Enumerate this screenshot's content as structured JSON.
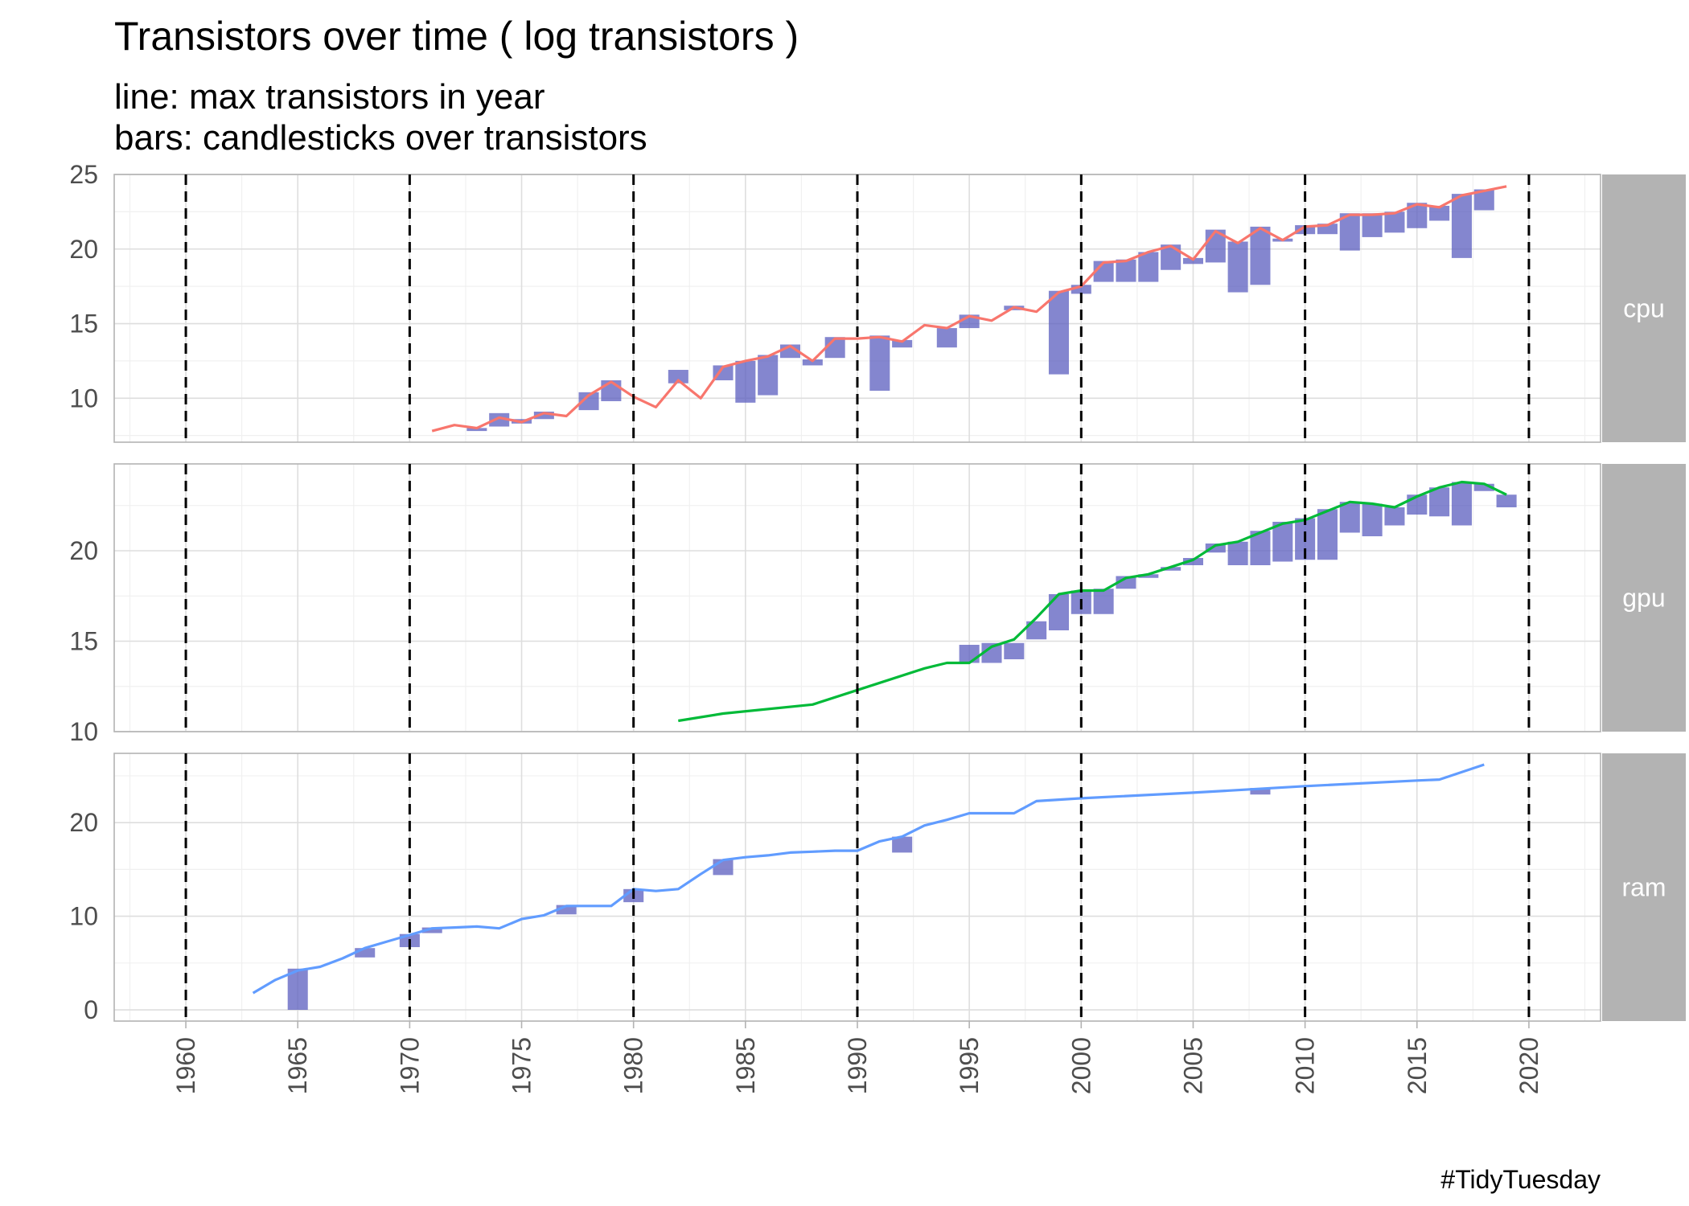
{
  "chart_data": {
    "type": "line+candlestick",
    "title": "Transistors over time ( log transistors )",
    "subtitle_lines": [
      "line: max transistors in year",
      "bars: candlesticks over transistors"
    ],
    "caption": "#TidyTuesday",
    "x_label": "",
    "y_label": "",
    "xlim": [
      1956.8,
      2023.2
    ],
    "x_ticks": [
      1960,
      1965,
      1970,
      1975,
      1980,
      1985,
      1990,
      1995,
      2000,
      2005,
      2010,
      2015,
      2020
    ],
    "decade_reference_lines": [
      1960,
      1970,
      1980,
      1990,
      2000,
      2010,
      2020
    ],
    "bar_color": "#5B5EBF",
    "grid": true,
    "panels": [
      {
        "facet": "cpu",
        "color": "#F8766D",
        "ylim": [
          7.05,
          25.0
        ],
        "y_ticks": [
          10,
          15,
          20,
          25
        ],
        "line": [
          [
            1971,
            7.8
          ],
          [
            1972,
            8.2
          ],
          [
            1973,
            8.0
          ],
          [
            1974,
            8.7
          ],
          [
            1975,
            8.4
          ],
          [
            1976,
            9.0
          ],
          [
            1977,
            8.8
          ],
          [
            1978,
            10.2
          ],
          [
            1979,
            11.1
          ],
          [
            1980,
            10.1
          ],
          [
            1981,
            9.4
          ],
          [
            1982,
            11.2
          ],
          [
            1983,
            10.0
          ],
          [
            1984,
            12.1
          ],
          [
            1985,
            12.5
          ],
          [
            1986,
            12.8
          ],
          [
            1987,
            13.5
          ],
          [
            1988,
            12.5
          ],
          [
            1989,
            14.0
          ],
          [
            1990,
            14.0
          ],
          [
            1991,
            14.1
          ],
          [
            1992,
            13.8
          ],
          [
            1993,
            14.9
          ],
          [
            1994,
            14.7
          ],
          [
            1995,
            15.5
          ],
          [
            1996,
            15.2
          ],
          [
            1997,
            16.1
          ],
          [
            1998,
            15.8
          ],
          [
            1999,
            17.1
          ],
          [
            2000,
            17.5
          ],
          [
            2001,
            19.1
          ],
          [
            2002,
            19.2
          ],
          [
            2003,
            19.8
          ],
          [
            2004,
            20.2
          ],
          [
            2005,
            19.3
          ],
          [
            2006,
            21.2
          ],
          [
            2007,
            20.4
          ],
          [
            2008,
            21.4
          ],
          [
            2009,
            20.6
          ],
          [
            2010,
            21.5
          ],
          [
            2011,
            21.6
          ],
          [
            2012,
            22.3
          ],
          [
            2013,
            22.3
          ],
          [
            2014,
            22.4
          ],
          [
            2015,
            23.0
          ],
          [
            2016,
            22.8
          ],
          [
            2017,
            23.6
          ],
          [
            2018,
            23.9
          ],
          [
            2019,
            24.2
          ]
        ],
        "bars": [
          [
            1973,
            7.8,
            8.0
          ],
          [
            1974,
            8.1,
            9.0
          ],
          [
            1975,
            8.3,
            8.6
          ],
          [
            1976,
            8.6,
            9.1
          ],
          [
            1978,
            9.2,
            10.4
          ],
          [
            1979,
            9.8,
            11.2
          ],
          [
            1982,
            11.0,
            11.9
          ],
          [
            1984,
            11.2,
            12.2
          ],
          [
            1985,
            9.7,
            12.5
          ],
          [
            1986,
            10.2,
            12.9
          ],
          [
            1987,
            12.7,
            13.6
          ],
          [
            1988,
            12.2,
            12.6
          ],
          [
            1989,
            12.7,
            14.1
          ],
          [
            1991,
            10.5,
            14.2
          ],
          [
            1992,
            13.4,
            13.9
          ],
          [
            1994,
            13.4,
            14.7
          ],
          [
            1995,
            14.7,
            15.6
          ],
          [
            1997,
            15.9,
            16.2
          ],
          [
            1999,
            11.6,
            17.2
          ],
          [
            2000,
            17.0,
            17.6
          ],
          [
            2001,
            17.8,
            19.2
          ],
          [
            2002,
            17.8,
            19.3
          ],
          [
            2003,
            17.8,
            19.8
          ],
          [
            2004,
            18.6,
            20.3
          ],
          [
            2005,
            19.0,
            19.4
          ],
          [
            2006,
            19.1,
            21.3
          ],
          [
            2007,
            17.1,
            20.5
          ],
          [
            2008,
            17.6,
            21.5
          ],
          [
            2009,
            20.5,
            20.7
          ],
          [
            2010,
            21.0,
            21.6
          ],
          [
            2011,
            21.0,
            21.7
          ],
          [
            2012,
            19.9,
            22.4
          ],
          [
            2013,
            20.8,
            22.4
          ],
          [
            2014,
            21.1,
            22.5
          ],
          [
            2015,
            21.4,
            23.1
          ],
          [
            2016,
            21.9,
            22.9
          ],
          [
            2017,
            19.4,
            23.7
          ],
          [
            2018,
            22.6,
            24.0
          ]
        ]
      },
      {
        "facet": "gpu",
        "color": "#00BA38",
        "ylim": [
          10.0,
          24.8
        ],
        "y_ticks": [
          10,
          15,
          20
        ],
        "line": [
          [
            1982,
            10.6
          ],
          [
            1984,
            11.0
          ],
          [
            1988,
            11.5
          ],
          [
            1990,
            12.3
          ],
          [
            1993,
            13.5
          ],
          [
            1994,
            13.8
          ],
          [
            1995,
            13.8
          ],
          [
            1996,
            14.7
          ],
          [
            1997,
            15.1
          ],
          [
            1998,
            16.3
          ],
          [
            1999,
            17.6
          ],
          [
            2000,
            17.8
          ],
          [
            2001,
            17.8
          ],
          [
            2002,
            18.5
          ],
          [
            2003,
            18.7
          ],
          [
            2004,
            19.1
          ],
          [
            2005,
            19.5
          ],
          [
            2006,
            20.3
          ],
          [
            2007,
            20.5
          ],
          [
            2008,
            21.0
          ],
          [
            2009,
            21.5
          ],
          [
            2010,
            21.7
          ],
          [
            2011,
            22.2
          ],
          [
            2012,
            22.7
          ],
          [
            2013,
            22.6
          ],
          [
            2014,
            22.4
          ],
          [
            2015,
            23.0
          ],
          [
            2016,
            23.5
          ],
          [
            2017,
            23.8
          ],
          [
            2018,
            23.7
          ],
          [
            2019,
            23.1
          ]
        ],
        "bars": [
          [
            1995,
            13.8,
            14.8
          ],
          [
            1996,
            13.8,
            14.9
          ],
          [
            1997,
            14.0,
            14.9
          ],
          [
            1998,
            15.1,
            16.1
          ],
          [
            1999,
            15.6,
            17.6
          ],
          [
            2000,
            16.5,
            17.8
          ],
          [
            2001,
            16.5,
            17.9
          ],
          [
            2002,
            17.9,
            18.6
          ],
          [
            2003,
            18.5,
            18.7
          ],
          [
            2004,
            18.9,
            19.1
          ],
          [
            2005,
            19.2,
            19.6
          ],
          [
            2006,
            19.9,
            20.4
          ],
          [
            2007,
            19.2,
            20.5
          ],
          [
            2008,
            19.2,
            21.1
          ],
          [
            2009,
            19.4,
            21.6
          ],
          [
            2010,
            19.5,
            21.8
          ],
          [
            2011,
            19.5,
            22.3
          ],
          [
            2012,
            21.0,
            22.7
          ],
          [
            2013,
            20.8,
            22.6
          ],
          [
            2014,
            21.4,
            22.4
          ],
          [
            2015,
            22.0,
            23.1
          ],
          [
            2016,
            21.9,
            23.5
          ],
          [
            2017,
            21.4,
            23.8
          ],
          [
            2018,
            23.3,
            23.7
          ],
          [
            2019,
            22.4,
            23.1
          ]
        ]
      },
      {
        "facet": "ram",
        "color": "#619CFF",
        "ylim": [
          -1.2,
          27.4
        ],
        "y_ticks": [
          0,
          10,
          20
        ],
        "line": [
          [
            1963,
            1.8
          ],
          [
            1964,
            3.2
          ],
          [
            1965,
            4.2
          ],
          [
            1966,
            4.6
          ],
          [
            1967,
            5.5
          ],
          [
            1968,
            6.6
          ],
          [
            1969,
            7.3
          ],
          [
            1970,
            8.0
          ],
          [
            1971,
            8.7
          ],
          [
            1972,
            8.8
          ],
          [
            1973,
            8.9
          ],
          [
            1974,
            8.7
          ],
          [
            1975,
            9.7
          ],
          [
            1976,
            10.1
          ],
          [
            1977,
            11.1
          ],
          [
            1978,
            11.1
          ],
          [
            1979,
            11.1
          ],
          [
            1980,
            12.9
          ],
          [
            1981,
            12.7
          ],
          [
            1982,
            12.9
          ],
          [
            1983,
            14.5
          ],
          [
            1984,
            16.0
          ],
          [
            1985,
            16.3
          ],
          [
            1986,
            16.5
          ],
          [
            1987,
            16.8
          ],
          [
            1988,
            16.9
          ],
          [
            1989,
            17.0
          ],
          [
            1990,
            17.0
          ],
          [
            1991,
            18.0
          ],
          [
            1992,
            18.5
          ],
          [
            1993,
            19.7
          ],
          [
            1994,
            20.3
          ],
          [
            1995,
            21.0
          ],
          [
            1996,
            21.0
          ],
          [
            1997,
            21.0
          ],
          [
            1998,
            22.3
          ],
          [
            2000,
            22.6
          ],
          [
            2005,
            23.2
          ],
          [
            2010,
            23.9
          ],
          [
            2015,
            24.5
          ],
          [
            2016,
            24.6
          ],
          [
            2018,
            26.2
          ]
        ],
        "bars": [
          [
            1965,
            0.0,
            4.4
          ],
          [
            1968,
            5.6,
            6.6
          ],
          [
            1970,
            6.7,
            8.1
          ],
          [
            1971,
            8.2,
            8.8
          ],
          [
            1977,
            10.2,
            11.2
          ],
          [
            1980,
            11.5,
            12.9
          ],
          [
            1984,
            14.4,
            16.1
          ],
          [
            1992,
            16.8,
            18.5
          ],
          [
            2008,
            23.0,
            23.7
          ]
        ]
      }
    ]
  }
}
